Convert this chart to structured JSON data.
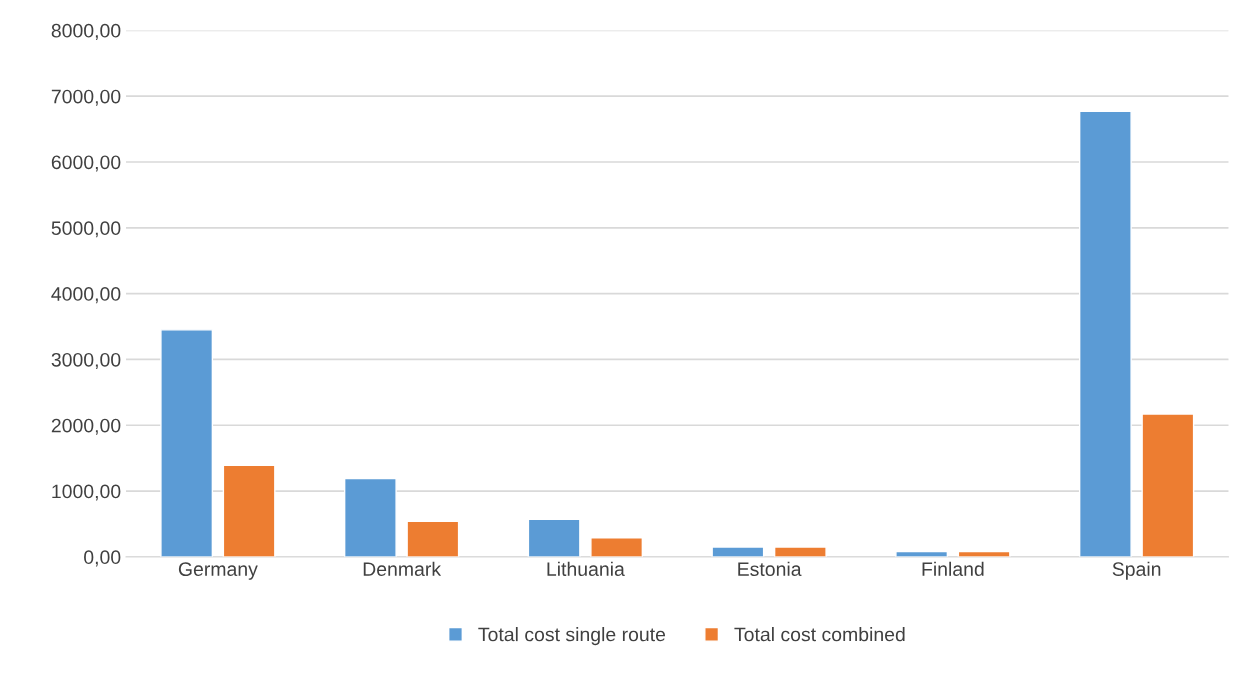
{
  "chart_data": {
    "type": "bar",
    "categories": [
      "Germany",
      "Denmark",
      "Lithuania",
      "Estonia",
      "Finland",
      "Spain"
    ],
    "series": [
      {
        "name": "Total cost single route",
        "color": "#5b9bd5",
        "values": [
          3450,
          1190,
          570,
          150,
          80,
          6770
        ]
      },
      {
        "name": "Total cost combined",
        "color": "#ed7d31",
        "values": [
          1390,
          540,
          290,
          150,
          80,
          2170
        ]
      }
    ],
    "ylim": [
      0,
      8000
    ],
    "yticks": [
      {
        "value": 0,
        "label": "0,00"
      },
      {
        "value": 1000,
        "label": "1000,00"
      },
      {
        "value": 2000,
        "label": "2000,00"
      },
      {
        "value": 3000,
        "label": "3000,00"
      },
      {
        "value": 4000,
        "label": "4000,00"
      },
      {
        "value": 5000,
        "label": "5000,00"
      },
      {
        "value": 6000,
        "label": "6000,00"
      },
      {
        "value": 7000,
        "label": "7000,00"
      },
      {
        "value": 8000,
        "label": "8000,00"
      }
    ],
    "grid": "y",
    "legend": "bottom"
  }
}
